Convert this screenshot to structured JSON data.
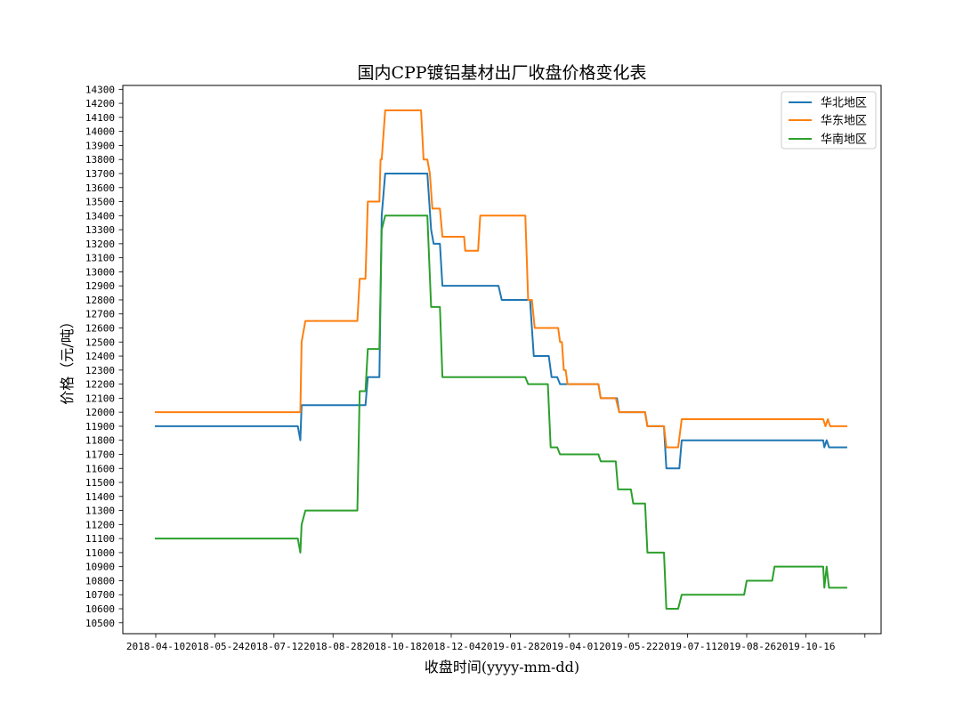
{
  "chart_data": {
    "type": "line",
    "title": "国内CPP镀铝基材出厂收盘价格变化表",
    "xlabel": "收盘时间(yyyy-mm-dd)",
    "ylabel": "价格（元/吨）",
    "xticks": [
      "2018-04-10",
      "2018-05-24",
      "2018-07-12",
      "2018-08-28",
      "2018-10-18",
      "2018-12-04",
      "2019-01-28",
      "2019-04-01",
      "2019-05-22",
      "2019-07-11",
      "2019-08-26",
      "2019-10-16",
      ""
    ],
    "yticks": [
      10500,
      10600,
      10700,
      10800,
      10900,
      11000,
      11100,
      11200,
      11300,
      11400,
      11500,
      11600,
      11700,
      11800,
      11900,
      12000,
      12100,
      12200,
      12300,
      12400,
      12500,
      12600,
      12700,
      12800,
      12900,
      13000,
      13100,
      13200,
      13300,
      13400,
      13500,
      13600,
      13700,
      13800,
      13900,
      14000,
      14100,
      14200,
      14300
    ],
    "ylim": [
      10422.5,
      14327.5
    ],
    "grid": false,
    "legend": "top-right",
    "series": [
      {
        "name": "华北地区",
        "color": "#1f77b4",
        "points": [
          [
            "2018-04-10",
            11900
          ],
          [
            "2018-07-31",
            11900
          ],
          [
            "2018-08-02",
            11800
          ],
          [
            "2018-08-03",
            12050
          ],
          [
            "2018-09-25",
            12050
          ],
          [
            "2018-09-27",
            12250
          ],
          [
            "2018-10-07",
            12250
          ],
          [
            "2018-10-09",
            13400
          ],
          [
            "2018-10-12",
            13700
          ],
          [
            "2018-11-15",
            13700
          ],
          [
            "2018-11-18",
            13300
          ],
          [
            "2018-11-20",
            13200
          ],
          [
            "2018-11-25",
            13200
          ],
          [
            "2018-11-27",
            12900
          ],
          [
            "2019-01-17",
            12900
          ],
          [
            "2019-01-20",
            12800
          ],
          [
            "2019-02-18",
            12800
          ],
          [
            "2019-02-22",
            12400
          ],
          [
            "2019-03-10",
            12400
          ],
          [
            "2019-03-13",
            12250
          ],
          [
            "2019-03-19",
            12250
          ],
          [
            "2019-03-22",
            12200
          ],
          [
            "2019-04-26",
            12200
          ],
          [
            "2019-04-28",
            12100
          ],
          [
            "2019-05-12",
            12100
          ],
          [
            "2019-05-14",
            12000
          ],
          [
            "2019-06-05",
            12000
          ],
          [
            "2019-06-07",
            11900
          ],
          [
            "2019-06-21",
            11900
          ],
          [
            "2019-06-23",
            11600
          ],
          [
            "2019-07-04",
            11600
          ],
          [
            "2019-07-06",
            11800
          ],
          [
            "2019-10-31",
            11800
          ],
          [
            "2019-11-01",
            11750
          ],
          [
            "2019-11-03",
            11800
          ],
          [
            "2019-11-05",
            11750
          ],
          [
            "2019-11-20",
            11750
          ]
        ]
      },
      {
        "name": "华东地区",
        "color": "#ff7f0e",
        "points": [
          [
            "2018-04-10",
            12000
          ],
          [
            "2018-08-02",
            12000
          ],
          [
            "2018-08-03",
            12500
          ],
          [
            "2018-08-06",
            12650
          ],
          [
            "2018-09-18",
            12650
          ],
          [
            "2018-09-20",
            12950
          ],
          [
            "2018-09-25",
            12950
          ],
          [
            "2018-09-27",
            13500
          ],
          [
            "2018-10-07",
            13500
          ],
          [
            "2018-10-08",
            13800
          ],
          [
            "2018-10-09",
            13800
          ],
          [
            "2018-10-12",
            14150
          ],
          [
            "2018-11-10",
            14150
          ],
          [
            "2018-11-12",
            13800
          ],
          [
            "2018-11-15",
            13800
          ],
          [
            "2018-11-17",
            13700
          ],
          [
            "2018-11-19",
            13450
          ],
          [
            "2018-11-25",
            13450
          ],
          [
            "2018-11-27",
            13250
          ],
          [
            "2018-12-16",
            13250
          ],
          [
            "2018-12-17",
            13150
          ],
          [
            "2018-12-29",
            13150
          ],
          [
            "2018-12-31",
            13400
          ],
          [
            "2019-02-13",
            13400
          ],
          [
            "2019-02-16",
            12800
          ],
          [
            "2019-02-20",
            12800
          ],
          [
            "2019-02-23",
            12600
          ],
          [
            "2019-03-20",
            12600
          ],
          [
            "2019-03-22",
            12500
          ],
          [
            "2019-03-24",
            12500
          ],
          [
            "2019-03-26",
            12300
          ],
          [
            "2019-03-28",
            12300
          ],
          [
            "2019-03-30",
            12200
          ],
          [
            "2019-04-26",
            12200
          ],
          [
            "2019-04-28",
            12100
          ],
          [
            "2019-05-11",
            12100
          ],
          [
            "2019-05-14",
            12000
          ],
          [
            "2019-06-05",
            12000
          ],
          [
            "2019-06-07",
            11900
          ],
          [
            "2019-06-21",
            11900
          ],
          [
            "2019-06-23",
            11750
          ],
          [
            "2019-07-03",
            11750
          ],
          [
            "2019-07-06",
            11950
          ],
          [
            "2019-10-31",
            11950
          ],
          [
            "2019-11-02",
            11900
          ],
          [
            "2019-11-04",
            11950
          ],
          [
            "2019-11-06",
            11900
          ],
          [
            "2019-11-20",
            11900
          ]
        ]
      },
      {
        "name": "华南地区",
        "color": "#2ca02c",
        "points": [
          [
            "2018-04-10",
            11100
          ],
          [
            "2018-07-31",
            11100
          ],
          [
            "2018-08-02",
            11000
          ],
          [
            "2018-08-03",
            11200
          ],
          [
            "2018-08-06",
            11300
          ],
          [
            "2018-09-18",
            11300
          ],
          [
            "2018-09-20",
            12150
          ],
          [
            "2018-09-25",
            12150
          ],
          [
            "2018-09-27",
            12450
          ],
          [
            "2018-10-07",
            12450
          ],
          [
            "2018-10-09",
            13300
          ],
          [
            "2018-10-12",
            13400
          ],
          [
            "2018-11-15",
            13400
          ],
          [
            "2018-11-18",
            12750
          ],
          [
            "2018-11-25",
            12750
          ],
          [
            "2018-11-27",
            12250
          ],
          [
            "2019-02-13",
            12250
          ],
          [
            "2019-02-16",
            12200
          ],
          [
            "2019-03-09",
            12200
          ],
          [
            "2019-03-12",
            11750
          ],
          [
            "2019-03-19",
            11750
          ],
          [
            "2019-03-22",
            11700
          ],
          [
            "2019-04-26",
            11700
          ],
          [
            "2019-04-28",
            11650
          ],
          [
            "2019-05-11",
            11650
          ],
          [
            "2019-05-13",
            11450
          ],
          [
            "2019-05-24",
            11450
          ],
          [
            "2019-05-26",
            11350
          ],
          [
            "2019-06-05",
            11350
          ],
          [
            "2019-06-07",
            11000
          ],
          [
            "2019-06-21",
            11000
          ],
          [
            "2019-06-23",
            10600
          ],
          [
            "2019-07-03",
            10600
          ],
          [
            "2019-07-06",
            10700
          ],
          [
            "2019-08-24",
            10700
          ],
          [
            "2019-08-26",
            10800
          ],
          [
            "2019-09-17",
            10800
          ],
          [
            "2019-09-19",
            10900
          ],
          [
            "2019-10-31",
            10900
          ],
          [
            "2019-11-01",
            10750
          ],
          [
            "2019-11-03",
            10900
          ],
          [
            "2019-11-05",
            10750
          ],
          [
            "2019-11-20",
            10750
          ]
        ]
      }
    ]
  }
}
